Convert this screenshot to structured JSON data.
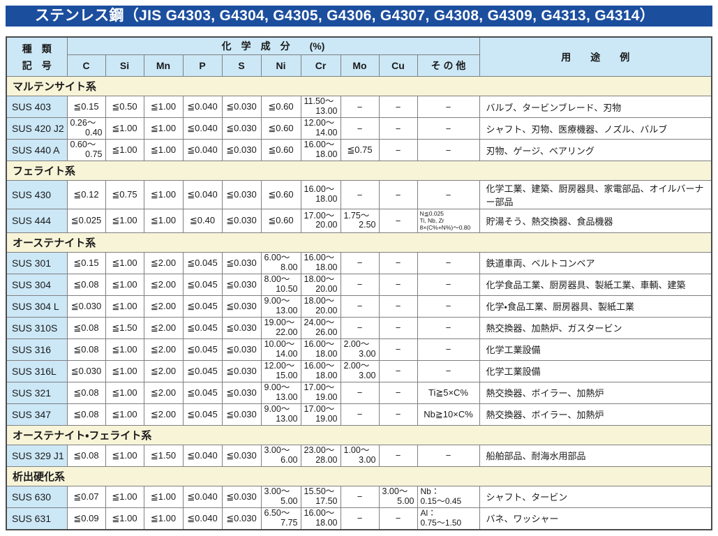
{
  "title": "ステンレス鋼（JIS G4303, G4304, G4305, G4306, G4307, G4308, G4309, G4313, G4314）",
  "colors": {
    "banner_blue": "#1c4e9e",
    "header_blue": "#cce8f7",
    "label_blue": "#cce8f7",
    "section_yellow": "#f8f4d8",
    "border_gray": "#7f7f7f"
  },
  "table": {
    "header": {
      "kind_line1": "種　類",
      "kind_line2": "記　号",
      "chem_group": "化　学　成　分　　(%)",
      "elements": [
        "C",
        "Si",
        "Mn",
        "P",
        "S",
        "Ni",
        "Cr",
        "Mo",
        "Cu",
        "そ の 他"
      ],
      "usage": "用　　途　　例"
    },
    "sections": [
      {
        "name": "マルテンサイト系",
        "rows": [
          {
            "code": "SUS 403",
            "comp": [
              "≦0.15",
              "≦0.50",
              "≦1.00",
              "≦0.040",
              "≦0.030",
              "≦0.60",
              "11.50～\n13.00",
              "−",
              "−",
              "−"
            ],
            "use": "バルブ、タービンブレード、刃物"
          },
          {
            "code": "SUS 420 J2",
            "comp": [
              "0.26～\n0.40",
              "≦1.00",
              "≦1.00",
              "≦0.040",
              "≦0.030",
              "≦0.60",
              "12.00～\n14.00",
              "−",
              "−",
              "−"
            ],
            "use": "シャフト、刃物、医療機器、ノズル、バルブ"
          },
          {
            "code": "SUS 440 A",
            "comp": [
              "0.60～\n0.75",
              "≦1.00",
              "≦1.00",
              "≦0.040",
              "≦0.030",
              "≦0.60",
              "16.00～\n18.00",
              "≦0.75",
              "−",
              "−"
            ],
            "use": "刃物、ゲージ、ベアリング"
          }
        ]
      },
      {
        "name": "フェライト系",
        "rows": [
          {
            "code": "SUS 430",
            "comp": [
              "≦0.12",
              "≦0.75",
              "≦1.00",
              "≦0.040",
              "≦0.030",
              "≦0.60",
              "16.00～\n18.00",
              "−",
              "−",
              "−"
            ],
            "use": "化学工業、建築、厨房器具、家電部品、オイルバーナー部品"
          },
          {
            "code": "SUS 444",
            "comp": [
              "≦0.025",
              "≦1.00",
              "≦1.00",
              "≦0.40",
              "≦0.030",
              "≦0.60",
              "17.00～\n20.00",
              "1.75～\n2.50",
              "−",
              "N≦0.025\nTi, Nb, Zr\n8×(C%+N%)～0.80"
            ],
            "use": "貯湯そう、熱交換器、食品機器"
          }
        ]
      },
      {
        "name": "オーステナイト系",
        "rows": [
          {
            "code": "SUS 301",
            "comp": [
              "≦0.15",
              "≦1.00",
              "≦2.00",
              "≦0.045",
              "≦0.030",
              "6.00～\n8.00",
              "16.00～\n18.00",
              "−",
              "−",
              "−"
            ],
            "use": "鉄道車両、ベルトコンベア"
          },
          {
            "code": "SUS 304",
            "comp": [
              "≦0.08",
              "≦1.00",
              "≦2.00",
              "≦0.045",
              "≦0.030",
              "8.00～\n10.50",
              "18.00～\n20.00",
              "−",
              "−",
              "−"
            ],
            "use": "化学食品工業、厨房器具、製紙工業、車輌、建築"
          },
          {
            "code": "SUS 304 L",
            "comp": [
              "≦0.030",
              "≦1.00",
              "≦2.00",
              "≦0.045",
              "≦0.030",
              "9.00～\n13.00",
              "18.00～\n20.00",
              "−",
              "−",
              "−"
            ],
            "use": "化学・食品工業、厨房器具、製紙工業"
          },
          {
            "code": "SUS 310S",
            "comp": [
              "≦0.08",
              "≦1.50",
              "≦2.00",
              "≦0.045",
              "≦0.030",
              "19.00～\n22.00",
              "24.00～\n26.00",
              "−",
              "−",
              "−"
            ],
            "use": "熱交換器、加熱炉、ガスタービン"
          },
          {
            "code": "SUS 316",
            "comp": [
              "≦0.08",
              "≦1.00",
              "≦2.00",
              "≦0.045",
              "≦0.030",
              "10.00～\n14.00",
              "16.00～\n18.00",
              "2.00～\n3.00",
              "−",
              "−"
            ],
            "use": "化学工業設備"
          },
          {
            "code": "SUS 316L",
            "comp": [
              "≦0.030",
              "≦1.00",
              "≦2.00",
              "≦0.045",
              "≦0.030",
              "12.00～\n15.00",
              "16.00～\n18.00",
              "2.00～\n3.00",
              "−",
              "−"
            ],
            "use": "化学工業設備"
          },
          {
            "code": "SUS 321",
            "comp": [
              "≦0.08",
              "≦1.00",
              "≦2.00",
              "≦0.045",
              "≦0.030",
              "9.00～\n13.00",
              "17.00～\n19.00",
              "−",
              "−",
              "Ti≧5×C%"
            ],
            "use": "熱交換器、ボイラー、加熱炉"
          },
          {
            "code": "SUS 347",
            "comp": [
              "≦0.08",
              "≦1.00",
              "≦2.00",
              "≦0.045",
              "≦0.030",
              "9.00～\n13.00",
              "17.00～\n19.00",
              "−",
              "−",
              "Nb≧10×C%"
            ],
            "use": "熱交換器、ボイラー、加熱炉"
          }
        ]
      },
      {
        "name": "オーステナイト・フェライト系",
        "rows": [
          {
            "code": "SUS 329 J1",
            "comp": [
              "≦0.08",
              "≦1.00",
              "≦1.50",
              "≦0.040",
              "≦0.030",
              "3.00～\n6.00",
              "23.00～\n28.00",
              "1.00～\n3.00",
              "−",
              "−"
            ],
            "use": "船舶部品、耐海水用部品"
          }
        ]
      },
      {
        "name": "析出硬化系",
        "rows": [
          {
            "code": "SUS 630",
            "comp": [
              "≦0.07",
              "≦1.00",
              "≦1.00",
              "≦0.040",
              "≦0.030",
              "3.00～\n5.00",
              "15.50～\n17.50",
              "−",
              "3.00～\n5.00",
              "Nb：\n0.15～0.45"
            ],
            "use": "シャフト、タービン"
          },
          {
            "code": "SUS 631",
            "comp": [
              "≦0.09",
              "≦1.00",
              "≦1.00",
              "≦0.040",
              "≦0.030",
              "6.50～\n7.75",
              "16.00～\n18.00",
              "−",
              "−",
              "Al：\n0.75～1.50"
            ],
            "use": "バネ、ワッシャー"
          }
        ]
      }
    ]
  }
}
